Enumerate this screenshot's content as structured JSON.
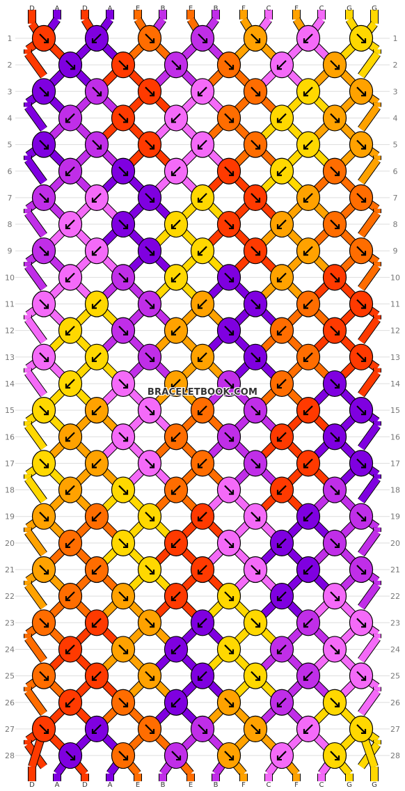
{
  "pattern": {
    "colors": {
      "A": "#7f00e0",
      "B": "#c02ee8",
      "C": "#f46af8",
      "D": "#ff3a00",
      "E": "#ff6d00",
      "F": "#ffa200",
      "G": "#ffd800"
    },
    "top_strings": [
      "D",
      "A",
      "D",
      "A",
      "E",
      "B",
      "E",
      "B",
      "F",
      "C",
      "F",
      "C",
      "G",
      "G"
    ],
    "bottom_strings": [
      "D",
      "A",
      "D",
      "A",
      "E",
      "B",
      "E",
      "B",
      "F",
      "C",
      "F",
      "C",
      "G",
      "G"
    ],
    "rows": [
      [
        [
          "D",
          "dr"
        ],
        [
          "A",
          "dl"
        ],
        [
          "E",
          "dr"
        ],
        [
          "B",
          "dr"
        ],
        [
          "F",
          "dr"
        ],
        [
          "C",
          "dl"
        ],
        [
          "G",
          "dr"
        ]
      ],
      [
        [
          "A",
          "dr"
        ],
        [
          "D",
          "dr"
        ],
        [
          "B",
          "dr"
        ],
        [
          "E",
          "dr"
        ],
        [
          "C",
          "dl"
        ],
        [
          "F",
          "dr"
        ]
      ],
      [
        [
          "A",
          "dr"
        ],
        [
          "B",
          "dr"
        ],
        [
          "D",
          "dr"
        ],
        [
          "C",
          "dl"
        ],
        [
          "E",
          "dr"
        ],
        [
          "G",
          "dl"
        ],
        [
          "F",
          "dr"
        ]
      ],
      [
        [
          "B",
          "dl"
        ],
        [
          "D",
          "dr"
        ],
        [
          "C",
          "dl"
        ],
        [
          "E",
          "dr"
        ],
        [
          "G",
          "dl"
        ],
        [
          "F",
          "dr"
        ]
      ],
      [
        [
          "A",
          "dr"
        ],
        [
          "B",
          "dr"
        ],
        [
          "D",
          "dr"
        ],
        [
          "C",
          "dl"
        ],
        [
          "E",
          "dr"
        ],
        [
          "G",
          "dl"
        ],
        [
          "F",
          "dr"
        ]
      ],
      [
        [
          "B",
          "dl"
        ],
        [
          "A",
          "dr"
        ],
        [
          "C",
          "dl"
        ],
        [
          "D",
          "dr"
        ],
        [
          "G",
          "dl"
        ],
        [
          "E",
          "dr"
        ]
      ],
      [
        [
          "B",
          "dr"
        ],
        [
          "C",
          "dl"
        ],
        [
          "A",
          "dr"
        ],
        [
          "G",
          "dl"
        ],
        [
          "D",
          "dr"
        ],
        [
          "F",
          "dl"
        ],
        [
          "E",
          "dr"
        ]
      ],
      [
        [
          "C",
          "dl"
        ],
        [
          "A",
          "dr"
        ],
        [
          "G",
          "dl"
        ],
        [
          "D",
          "dr"
        ],
        [
          "F",
          "dl"
        ],
        [
          "E",
          "dr"
        ]
      ],
      [
        [
          "B",
          "dr"
        ],
        [
          "C",
          "dl"
        ],
        [
          "A",
          "dr"
        ],
        [
          "G",
          "dl"
        ],
        [
          "D",
          "dr"
        ],
        [
          "F",
          "dl"
        ],
        [
          "E",
          "dr"
        ]
      ],
      [
        [
          "C",
          "dl"
        ],
        [
          "B",
          "dr"
        ],
        [
          "G",
          "dl"
        ],
        [
          "A",
          "dr"
        ],
        [
          "F",
          "dl"
        ],
        [
          "D",
          "dr"
        ]
      ],
      [
        [
          "C",
          "dr"
        ],
        [
          "G",
          "dl"
        ],
        [
          "B",
          "dr"
        ],
        [
          "F",
          "dl"
        ],
        [
          "A",
          "dr"
        ],
        [
          "E",
          "dl"
        ],
        [
          "D",
          "dr"
        ]
      ],
      [
        [
          "G",
          "dl"
        ],
        [
          "B",
          "dr"
        ],
        [
          "F",
          "dl"
        ],
        [
          "A",
          "dr"
        ],
        [
          "E",
          "dl"
        ],
        [
          "D",
          "dr"
        ]
      ],
      [
        [
          "C",
          "dr"
        ],
        [
          "G",
          "dl"
        ],
        [
          "B",
          "dr"
        ],
        [
          "F",
          "dl"
        ],
        [
          "A",
          "dr"
        ],
        [
          "E",
          "dl"
        ],
        [
          "D",
          "dr"
        ]
      ],
      [
        [
          "G",
          "dl"
        ],
        [
          "C",
          "dr"
        ],
        [
          "F",
          "dl"
        ],
        [
          "B",
          "dr"
        ],
        [
          "E",
          "dl"
        ],
        [
          "A",
          "dr"
        ]
      ],
      [
        [
          "G",
          "dr"
        ],
        [
          "F",
          "dl"
        ],
        [
          "C",
          "dr"
        ],
        [
          "E",
          "dl"
        ],
        [
          "B",
          "dr"
        ],
        [
          "D",
          "dl"
        ],
        [
          "A",
          "dr"
        ]
      ],
      [
        [
          "F",
          "dl"
        ],
        [
          "C",
          "dr"
        ],
        [
          "E",
          "dl"
        ],
        [
          "B",
          "dr"
        ],
        [
          "D",
          "dl"
        ],
        [
          "A",
          "dr"
        ]
      ],
      [
        [
          "G",
          "dr"
        ],
        [
          "F",
          "dl"
        ],
        [
          "C",
          "dr"
        ],
        [
          "E",
          "dl"
        ],
        [
          "B",
          "dr"
        ],
        [
          "D",
          "dl"
        ],
        [
          "A",
          "dr"
        ]
      ],
      [
        [
          "F",
          "dl"
        ],
        [
          "G",
          "dr"
        ],
        [
          "E",
          "dl"
        ],
        [
          "C",
          "dr"
        ],
        [
          "D",
          "dl"
        ],
        [
          "B",
          "dr"
        ]
      ],
      [
        [
          "F",
          "dr"
        ],
        [
          "E",
          "dl"
        ],
        [
          "G",
          "dr"
        ],
        [
          "D",
          "dl"
        ],
        [
          "C",
          "dr"
        ],
        [
          "A",
          "dl"
        ],
        [
          "B",
          "dr"
        ]
      ],
      [
        [
          "E",
          "dl"
        ],
        [
          "G",
          "dr"
        ],
        [
          "D",
          "dl"
        ],
        [
          "C",
          "dr"
        ],
        [
          "A",
          "dl"
        ],
        [
          "B",
          "dr"
        ]
      ],
      [
        [
          "F",
          "dr"
        ],
        [
          "E",
          "dl"
        ],
        [
          "G",
          "dr"
        ],
        [
          "D",
          "dl"
        ],
        [
          "C",
          "dr"
        ],
        [
          "A",
          "dl"
        ],
        [
          "B",
          "dr"
        ]
      ],
      [
        [
          "E",
          "dl"
        ],
        [
          "F",
          "dr"
        ],
        [
          "D",
          "dl"
        ],
        [
          "G",
          "dr"
        ],
        [
          "A",
          "dl"
        ],
        [
          "C",
          "dr"
        ]
      ],
      [
        [
          "E",
          "dr"
        ],
        [
          "D",
          "dl"
        ],
        [
          "F",
          "dr"
        ],
        [
          "A",
          "dl"
        ],
        [
          "G",
          "dr"
        ],
        [
          "B",
          "dl"
        ],
        [
          "C",
          "dr"
        ]
      ],
      [
        [
          "D",
          "dl"
        ],
        [
          "F",
          "dr"
        ],
        [
          "A",
          "dl"
        ],
        [
          "G",
          "dr"
        ],
        [
          "B",
          "dl"
        ],
        [
          "C",
          "dr"
        ]
      ],
      [
        [
          "E",
          "dr"
        ],
        [
          "D",
          "dl"
        ],
        [
          "F",
          "dr"
        ],
        [
          "A",
          "dl"
        ],
        [
          "G",
          "dr"
        ],
        [
          "B",
          "dl"
        ],
        [
          "C",
          "dr"
        ]
      ],
      [
        [
          "D",
          "dl"
        ],
        [
          "E",
          "dr"
        ],
        [
          "A",
          "dl"
        ],
        [
          "F",
          "dr"
        ],
        [
          "B",
          "dl"
        ],
        [
          "G",
          "dr"
        ]
      ],
      [
        [
          "D",
          "dr"
        ],
        [
          "A",
          "dl"
        ],
        [
          "E",
          "dr"
        ],
        [
          "B",
          "dr"
        ],
        [
          "F",
          "dr"
        ],
        [
          "C",
          "dl"
        ],
        [
          "G",
          "dr"
        ]
      ],
      [
        [
          "A",
          "dr"
        ],
        [
          "E",
          "dr"
        ],
        [
          "B",
          "dr"
        ],
        [
          "F",
          "dr"
        ],
        [
          "C",
          "dl"
        ],
        [
          "G",
          "dr"
        ]
      ]
    ],
    "watermark": "BRACELETBOOK.COM"
  }
}
